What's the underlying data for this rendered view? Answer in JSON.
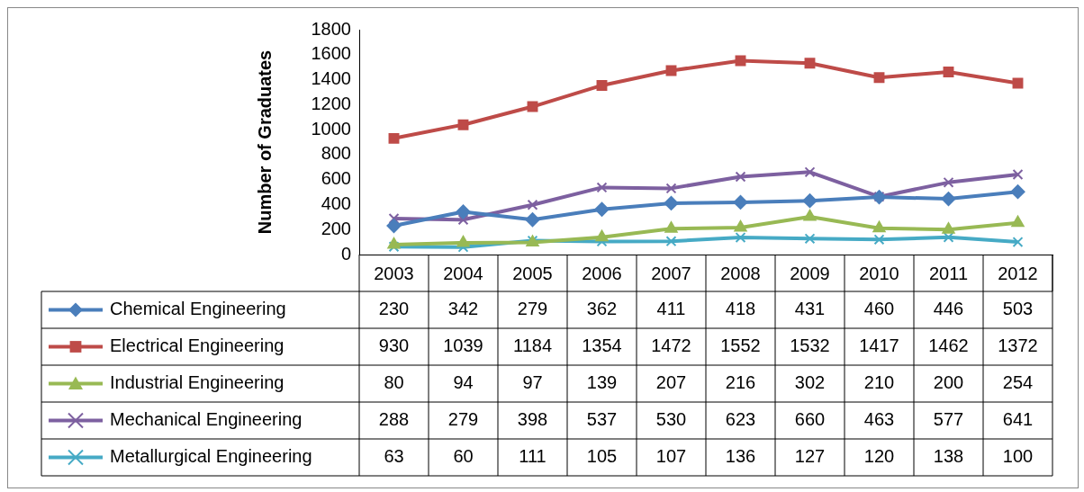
{
  "chart_data": {
    "type": "line",
    "ylabel": "Number of Graduates",
    "categories": [
      "2003",
      "2004",
      "2005",
      "2006",
      "2007",
      "2008",
      "2009",
      "2010",
      "2011",
      "2012"
    ],
    "series": [
      {
        "name": "Chemical Engineering",
        "color": "#4a7ebb",
        "marker": "diamond",
        "values": [
          230,
          342,
          279,
          362,
          411,
          418,
          431,
          460,
          446,
          503
        ]
      },
      {
        "name": "Electrical Engineering",
        "color": "#be4b48",
        "marker": "square",
        "values": [
          930,
          1039,
          1184,
          1354,
          1472,
          1552,
          1532,
          1417,
          1462,
          1372
        ]
      },
      {
        "name": "Industrial Engineering",
        "color": "#98b954",
        "marker": "triangle",
        "values": [
          80,
          94,
          97,
          139,
          207,
          216,
          302,
          210,
          200,
          254
        ]
      },
      {
        "name": "Mechanical Engineering",
        "color": "#7d60a0",
        "marker": "cross",
        "values": [
          288,
          279,
          398,
          537,
          530,
          623,
          660,
          463,
          577,
          641
        ]
      },
      {
        "name": "Metallurgical Engineering",
        "color": "#46aac5",
        "marker": "cross",
        "values": [
          63,
          60,
          111,
          105,
          107,
          136,
          127,
          120,
          138,
          100
        ]
      }
    ],
    "ylim": [
      0,
      1800
    ],
    "yticks": [
      0,
      200,
      400,
      600,
      800,
      1000,
      1200,
      1400,
      1600,
      1800
    ],
    "grid": false,
    "legend": "bottom",
    "data_labels": true
  }
}
